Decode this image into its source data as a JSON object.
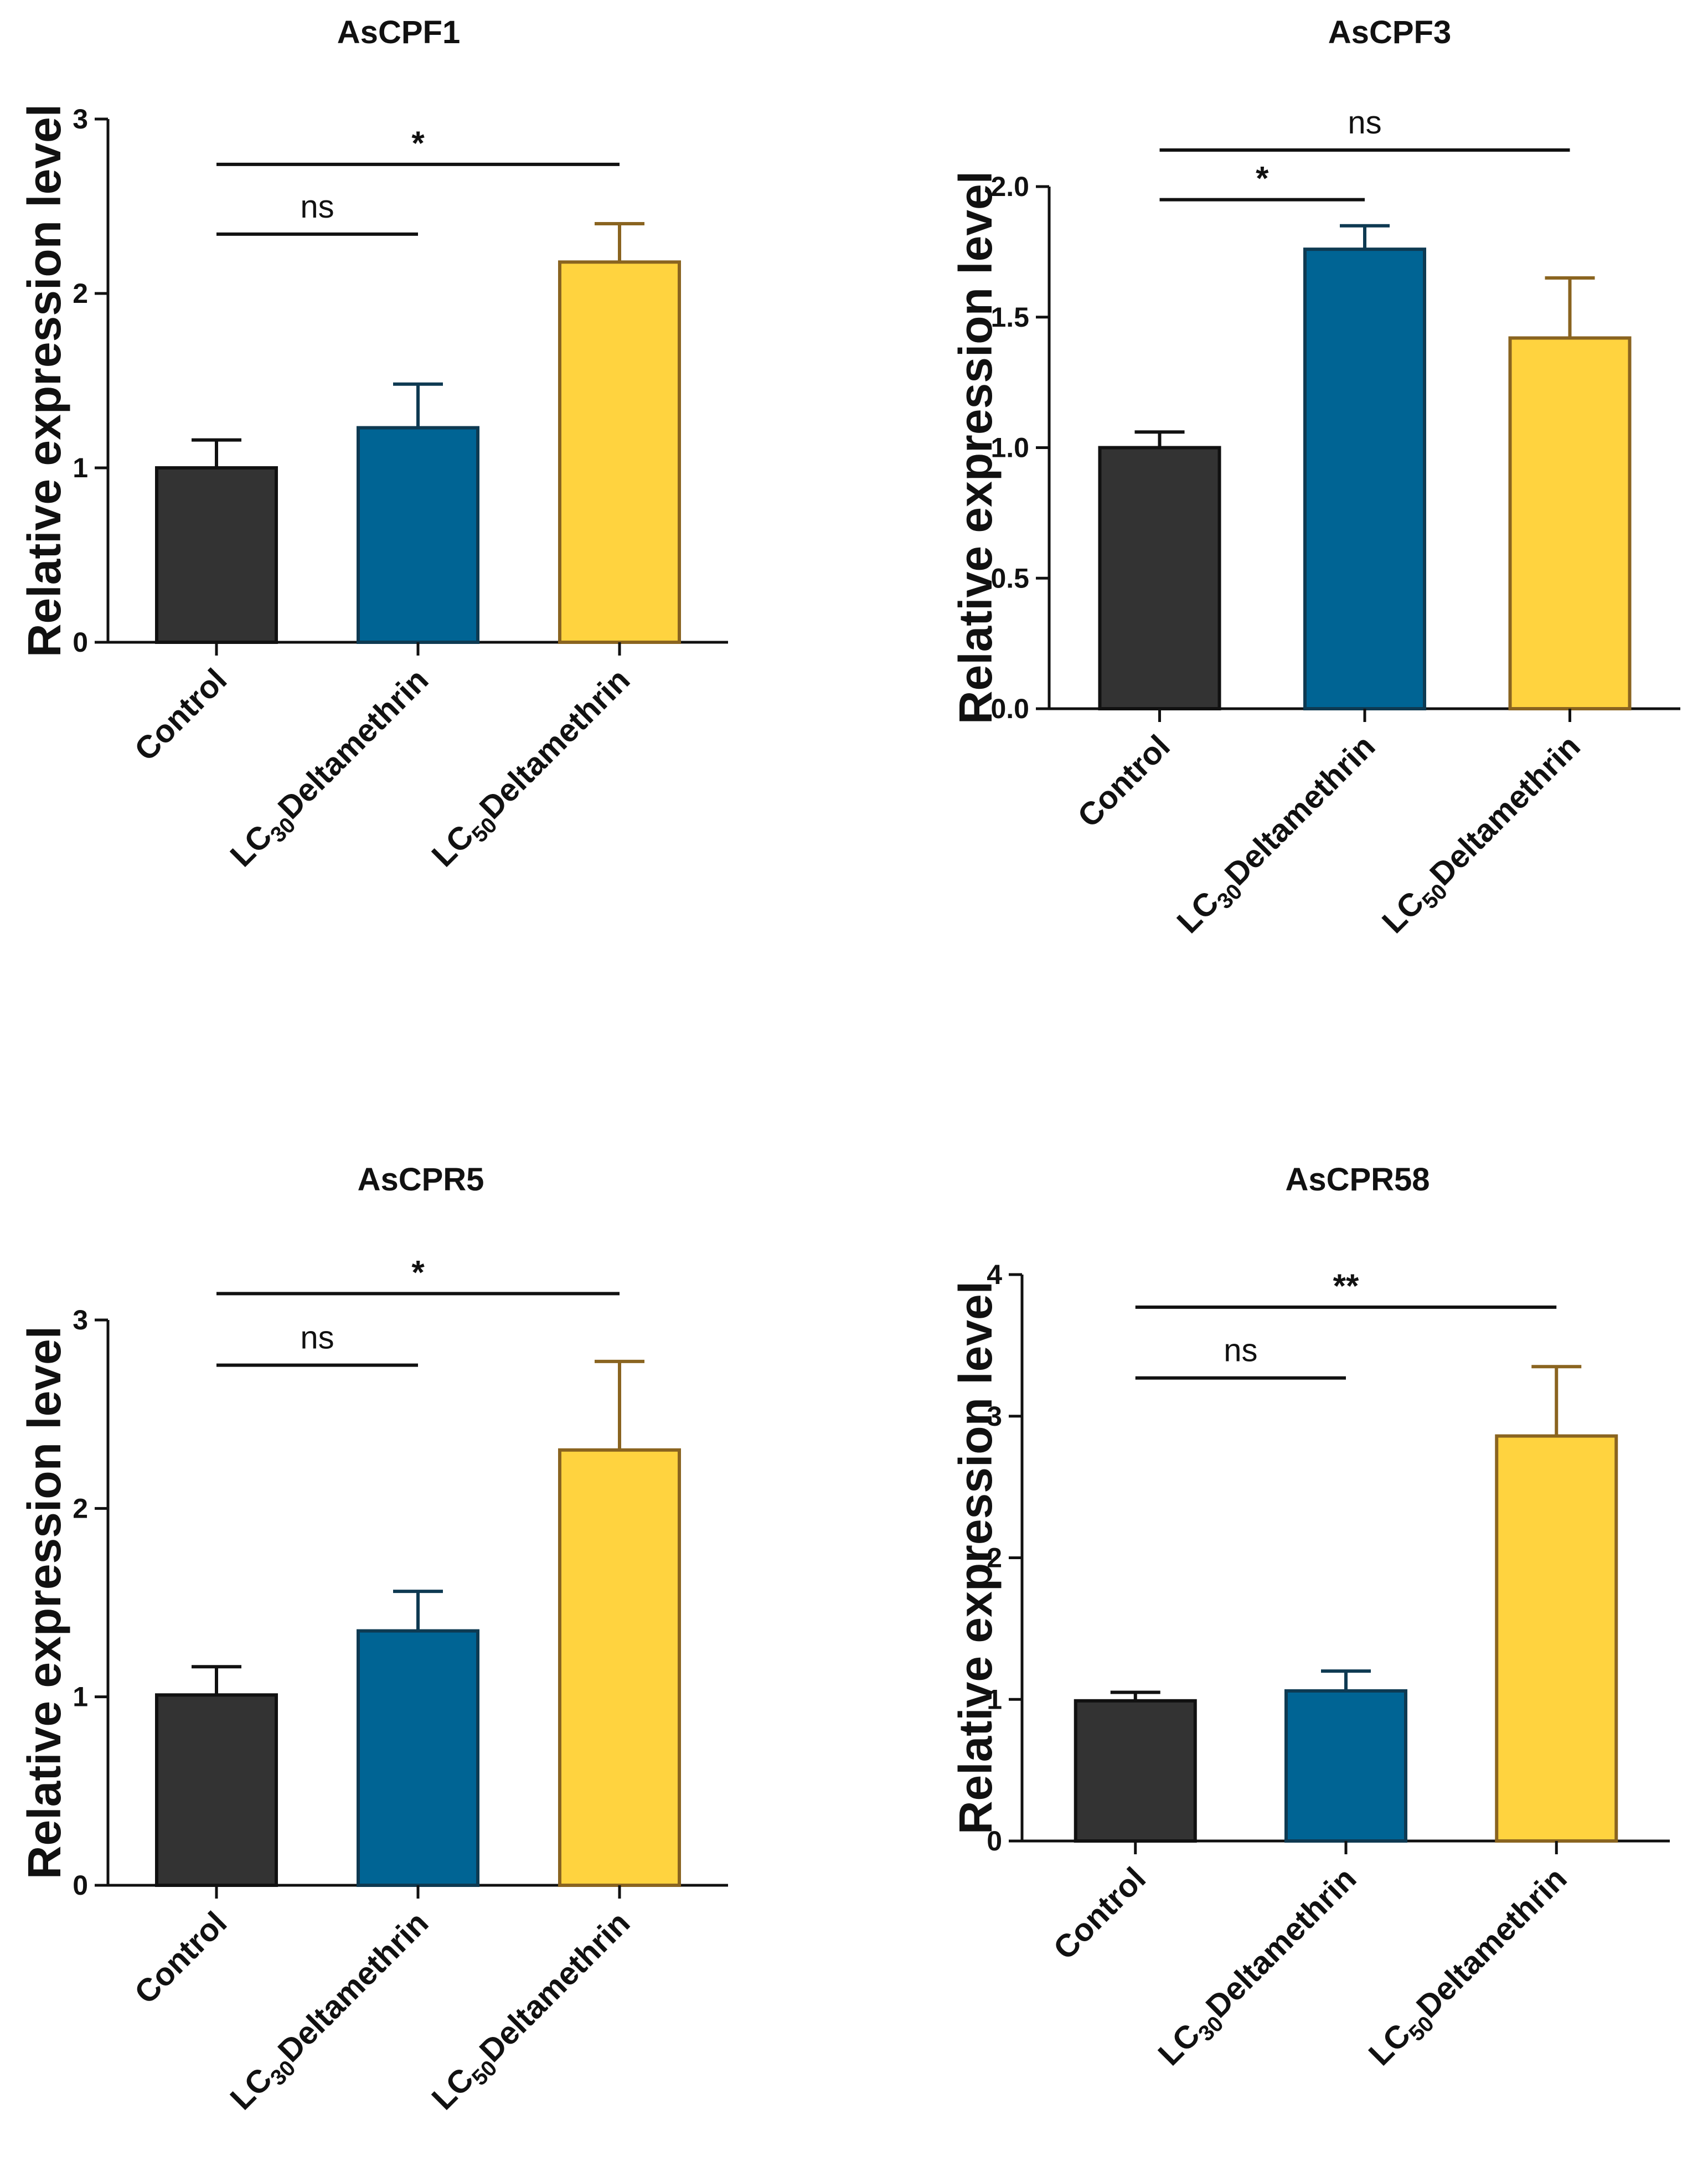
{
  "chart_data": [
    {
      "type": "bar",
      "title": "AsCPF1",
      "ylabel": "Relative expression level",
      "ylim": [
        0,
        3
      ],
      "yticks": [
        0,
        1,
        2,
        3
      ],
      "categories": [
        "Control",
        "LC30Deltamethrin",
        "LC50Deltamethrin"
      ],
      "values": [
        1.0,
        1.23,
        2.18
      ],
      "errors": [
        0.16,
        0.25,
        0.22
      ],
      "colors": [
        "#333333",
        "#006494",
        "#FFD33F"
      ],
      "edge_colors": [
        "#111111",
        "#0e3a52",
        "#8a6420"
      ],
      "significance": [
        {
          "from": 0,
          "to": 1,
          "label": "ns",
          "y": 2.34
        },
        {
          "from": 0,
          "to": 2,
          "label": "*",
          "y": 2.74
        }
      ]
    },
    {
      "type": "bar",
      "title": "AsCPF3",
      "ylabel": "Relative expression level",
      "ylim": [
        0,
        2.0
      ],
      "yticks": [
        "0.0",
        "0.5",
        "1.0",
        "1.5",
        "2.0"
      ],
      "categories": [
        "Control",
        "LC30Deltamethrin",
        "LC50Deltamethrin"
      ],
      "values": [
        1.0,
        1.76,
        1.42
      ],
      "errors": [
        0.06,
        0.09,
        0.23
      ],
      "colors": [
        "#333333",
        "#006494",
        "#FFD33F"
      ],
      "edge_colors": [
        "#111111",
        "#0e3a52",
        "#8a6420"
      ],
      "significance": [
        {
          "from": 0,
          "to": 1,
          "label": "*",
          "y": 1.95
        },
        {
          "from": 0,
          "to": 2,
          "label": "ns",
          "y": 2.14
        }
      ]
    },
    {
      "type": "bar",
      "title": "AsCPR5",
      "ylabel": "Relative expression level",
      "ylim": [
        0,
        3
      ],
      "yticks": [
        0,
        1,
        2,
        3
      ],
      "categories": [
        "Control",
        "LC30Deltamethrin",
        "LC50Deltamethrin"
      ],
      "values": [
        1.01,
        1.35,
        2.31
      ],
      "errors": [
        0.15,
        0.21,
        0.47
      ],
      "colors": [
        "#333333",
        "#006494",
        "#FFD33F"
      ],
      "edge_colors": [
        "#111111",
        "#0e3a52",
        "#8a6420"
      ],
      "significance": [
        {
          "from": 0,
          "to": 1,
          "label": "ns",
          "y": 2.76
        },
        {
          "from": 0,
          "to": 2,
          "label": "*",
          "y": 3.14
        }
      ]
    },
    {
      "type": "bar",
      "title": "AsCPR58",
      "ylabel": "Relative expression level",
      "ylim": [
        0,
        4
      ],
      "yticks": [
        0,
        1,
        2,
        3,
        4
      ],
      "categories": [
        "Control",
        "LC30Deltamethrin",
        "LC50Deltamethrin"
      ],
      "values": [
        0.99,
        1.06,
        2.86
      ],
      "errors": [
        0.06,
        0.14,
        0.49
      ],
      "colors": [
        "#333333",
        "#006494",
        "#FFD33F"
      ],
      "edge_colors": [
        "#111111",
        "#0e3a52",
        "#8a6420"
      ],
      "significance": [
        {
          "from": 0,
          "to": 1,
          "label": "ns",
          "y": 3.27
        },
        {
          "from": 0,
          "to": 2,
          "label": "**",
          "y": 3.77
        }
      ]
    }
  ]
}
